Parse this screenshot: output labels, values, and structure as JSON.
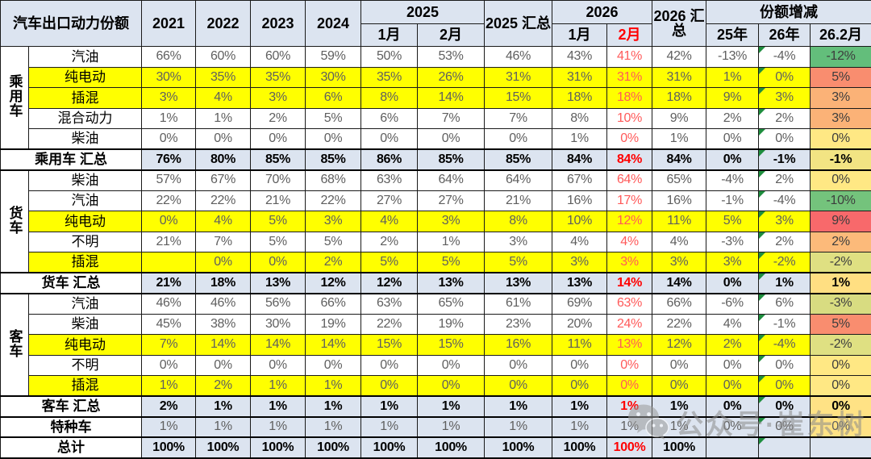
{
  "header": {
    "title": "汽车出口动力份额",
    "years": [
      "2021",
      "2022",
      "2023",
      "2024"
    ],
    "g2025": "2025",
    "g2025_sum": "2025 汇总",
    "g2026": "2026",
    "g2026_sum": "2026 汇总",
    "g_change": "份额增减",
    "months_2025": [
      "1月",
      "2月"
    ],
    "months_2026": [
      "1月",
      "2月"
    ],
    "change_cols": [
      "25年",
      "26年",
      "26.2月"
    ]
  },
  "watermark": {
    "icon": "wechat-icon",
    "text": "公众号·崔东树"
  },
  "colors": {
    "header_bg": "#dce4f0",
    "summary_bg": "#dce4f0",
    "highlight_bg": "#ffff00",
    "grid": "#1a1a1a",
    "value_text": "#5f5f5f",
    "red_text": "#ff5a5a",
    "red_bold_text": "#ff0000",
    "flag_green": "#1e8e3e",
    "scale_red": "#f8696b",
    "scale_yellow": "#ffe884",
    "scale_green": "#63be7b"
  },
  "chart_data": {
    "type": "table",
    "title": "汽车出口动力份额",
    "columns": [
      "2021",
      "2022",
      "2023",
      "2024",
      "2025-1月",
      "2025-2月",
      "2025汇总",
      "2026-1月",
      "2026-2月",
      "2026汇总",
      "份额增减-25年",
      "份额增减-26年",
      "份额增减-26.2月"
    ],
    "rows": [
      {
        "type": "data",
        "group": {
          "label": "乘用车",
          "span": 5
        },
        "label": "汽油",
        "highlight": false,
        "values": [
          "66%",
          "60%",
          "60%",
          "59%",
          "50%",
          "53%",
          "46%",
          "43%",
          "41%",
          "42%",
          "-13%",
          "-4%",
          "-12%"
        ],
        "last_bg": "#63be7b"
      },
      {
        "type": "data",
        "label": "纯电动",
        "highlight": true,
        "values": [
          "30%",
          "35%",
          "35%",
          "30%",
          "35%",
          "26%",
          "31%",
          "31%",
          "31%",
          "31%",
          "1%",
          "0%",
          "5%"
        ],
        "last_bg": "#f98d6f"
      },
      {
        "type": "data",
        "label": "插混",
        "highlight": true,
        "values": [
          "3%",
          "4%",
          "3%",
          "6%",
          "8%",
          "14%",
          "15%",
          "18%",
          "18%",
          "18%",
          "9%",
          "3%",
          "3%"
        ],
        "last_bg": "#fbb277"
      },
      {
        "type": "data",
        "label": "混合动力",
        "highlight": false,
        "values": [
          "1%",
          "1%",
          "2%",
          "5%",
          "6%",
          "7%",
          "7%",
          "8%",
          "10%",
          "9%",
          "2%",
          "2%",
          "3%"
        ],
        "last_bg": "#fbb277"
      },
      {
        "type": "data",
        "label": "柴油",
        "highlight": false,
        "values": [
          "0%",
          "0%",
          "0%",
          "0%",
          "0%",
          "0%",
          "0%",
          "1%",
          "0%",
          "1%",
          "0%",
          "0%",
          "0%"
        ],
        "last_bg": "#ffe884"
      },
      {
        "type": "summary",
        "label": "乘用车 汇总",
        "values": [
          "76%",
          "80%",
          "85%",
          "85%",
          "86%",
          "85%",
          "85%",
          "84%",
          "84%",
          "84%",
          "0%",
          "-1%",
          "-1%"
        ],
        "last_bg": "#f2e483"
      },
      {
        "type": "data",
        "group": {
          "label": "货车",
          "span": 5
        },
        "label": "柴油",
        "highlight": false,
        "values": [
          "57%",
          "67%",
          "70%",
          "68%",
          "63%",
          "64%",
          "64%",
          "67%",
          "64%",
          "65%",
          "-4%",
          "2%",
          "0%"
        ],
        "last_bg": "#ffe884"
      },
      {
        "type": "data",
        "label": "汽油",
        "highlight": false,
        "values": [
          "22%",
          "22%",
          "21%",
          "22%",
          "27%",
          "27%",
          "21%",
          "16%",
          "17%",
          "16%",
          "-1%",
          "-4%",
          "-10%"
        ],
        "last_bg": "#74c37c"
      },
      {
        "type": "data",
        "label": "纯电动",
        "highlight": true,
        "values": [
          "0%",
          "4%",
          "5%",
          "3%",
          "4%",
          "3%",
          "8%",
          "10%",
          "12%",
          "11%",
          "5%",
          "3%",
          "9%"
        ],
        "last_bg": "#f8696b"
      },
      {
        "type": "data",
        "label": "不明",
        "highlight": false,
        "values": [
          "21%",
          "7%",
          "5%",
          "5%",
          "2%",
          "1%",
          "3%",
          "4%",
          "4%",
          "4%",
          "-3%",
          "2%",
          "2%"
        ],
        "last_bg": "#fcba7a"
      },
      {
        "type": "data",
        "label": "插混",
        "highlight": true,
        "values": [
          "",
          "0%",
          "0%",
          "2%",
          "5%",
          "5%",
          "5%",
          "3%",
          "3%",
          "3%",
          "3%",
          "-2%",
          "-2%"
        ],
        "last_bg": "#dfe082"
      },
      {
        "type": "summary",
        "label": "货车 汇总",
        "values": [
          "21%",
          "18%",
          "13%",
          "12%",
          "12%",
          "13%",
          "13%",
          "13%",
          "14%",
          "14%",
          "0%",
          "1%",
          "1%"
        ],
        "last_bg": "#ffdf82"
      },
      {
        "type": "data",
        "group": {
          "label": "客车",
          "span": 5
        },
        "label": "汽油",
        "highlight": false,
        "values": [
          "46%",
          "46%",
          "56%",
          "66%",
          "63%",
          "65%",
          "61%",
          "69%",
          "63%",
          "66%",
          "-6%",
          "6%",
          "-3%"
        ],
        "last_bg": "#d8dc81"
      },
      {
        "type": "data",
        "label": "柴油",
        "highlight": false,
        "values": [
          "45%",
          "38%",
          "30%",
          "19%",
          "22%",
          "19%",
          "23%",
          "20%",
          "24%",
          "22%",
          "4%",
          "-1%",
          "5%"
        ],
        "last_bg": "#f98d6f"
      },
      {
        "type": "data",
        "label": "纯电动",
        "highlight": true,
        "values": [
          "7%",
          "14%",
          "14%",
          "14%",
          "15%",
          "15%",
          "16%",
          "11%",
          "13%",
          "12%",
          "2%",
          "-4%",
          "-2%"
        ],
        "last_bg": "#dfe082"
      },
      {
        "type": "data",
        "label": "不明",
        "highlight": false,
        "values": [
          "0%",
          "0%",
          "0%",
          "0%",
          "0%",
          "0%",
          "0%",
          "0%",
          "0%",
          "0%",
          "0%",
          "0%",
          "0%"
        ],
        "last_bg": "#ffe884"
      },
      {
        "type": "data",
        "label": "插混",
        "highlight": true,
        "values": [
          "1%",
          "2%",
          "1%",
          "1%",
          "0%",
          "0%",
          "0%",
          "0%",
          "0%",
          "0%",
          "0%",
          "0%",
          "0%"
        ],
        "last_bg": "#ffe884"
      },
      {
        "type": "summary",
        "label": "客车 汇总",
        "values": [
          "2%",
          "1%",
          "1%",
          "1%",
          "1%",
          "1%",
          "1%",
          "1%",
          "1%",
          "1%",
          "0%",
          "0%",
          "0%"
        ],
        "last_bg": "#ffe285"
      },
      {
        "type": "special",
        "label": "特种车",
        "values": [
          "1%",
          "1%",
          "1%",
          "1%",
          "1%",
          "1%",
          "1%",
          "1%",
          "1%",
          "1%",
          "0%",
          "0%",
          "0%"
        ],
        "last_bg": "#ffe285"
      },
      {
        "type": "total",
        "label": "总计",
        "values": [
          "100%",
          "100%",
          "100%",
          "100%",
          "100%",
          "100%",
          "100%",
          "100%",
          "100%",
          "100%",
          "",
          "",
          ""
        ],
        "last_bg": ""
      }
    ]
  }
}
